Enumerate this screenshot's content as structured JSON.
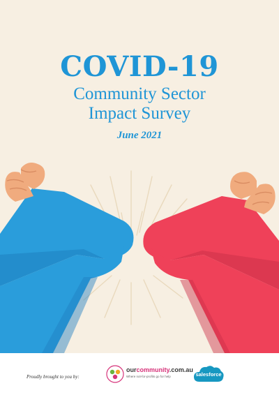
{
  "cover": {
    "title": "COVID-19",
    "subtitle_line1": "Community Sector",
    "subtitle_line2": "Impact Survey",
    "date": "June 2021"
  },
  "footer": {
    "brought_by": "Proudly brought to you by:",
    "ourcommunity": {
      "name_prefix": "our",
      "name_accent": "community",
      "name_suffix": ".com.au",
      "tagline": "Where not-for-profits go for help"
    },
    "salesforce": {
      "name": "salesforce"
    }
  },
  "colors": {
    "background": "#f7efe2",
    "title_blue": "#1f95d6",
    "left_sleeve": "#2a9ddb",
    "right_sleeve": "#ef4159",
    "skin": "#f0ab7e"
  },
  "icons": [
    "elbow-bump-illustration",
    "ourcommunity-logo",
    "salesforce-logo"
  ]
}
